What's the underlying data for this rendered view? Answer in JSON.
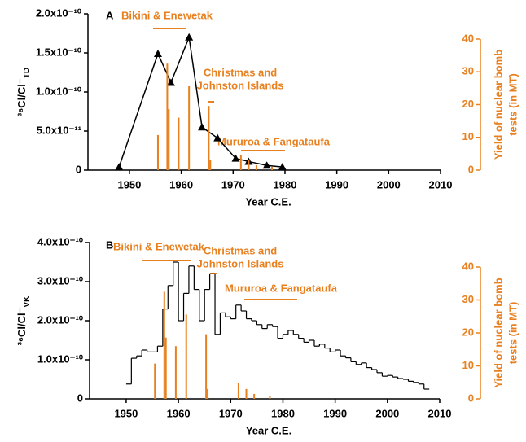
{
  "chart_data": [
    {
      "type": "line",
      "panel": "A",
      "ylabel": "³⁶Cl/Cl⁻",
      "ylabel_sub": "TD",
      "xlabel": "Year C.E.",
      "y2label": [
        "Yield of nuclear bomb",
        "tests (in MT)"
      ],
      "xlim": [
        1942,
        2010
      ],
      "xticks": [
        1950,
        1960,
        1970,
        1980,
        1990,
        2000,
        2010
      ],
      "ylim": [
        0,
        2e-10
      ],
      "yticks": [
        {
          "value": 0,
          "label": "0"
        },
        {
          "value": 5e-11,
          "label": "5.0x10⁻¹¹"
        },
        {
          "value": 1e-10,
          "label": "1.0x10⁻¹⁰"
        },
        {
          "value": 1.5e-10,
          "label": "1.5x10⁻¹⁰"
        },
        {
          "value": 2e-10,
          "label": "2.0x10⁻¹⁰"
        }
      ],
      "y2lim": [
        0,
        40
      ],
      "y2ticks": [
        0,
        10,
        20,
        30,
        40
      ],
      "series": [
        {
          "color": "#000000",
          "x": [
            1948,
            1955.5,
            1958,
            1961.5,
            1964,
            1967,
            1970.5,
            1973,
            1976.5,
            1979.5
          ],
          "values": [
            4e-12,
            1.49e-10,
            1.12e-10,
            1.7e-10,
            5.5e-11,
            4.1e-11,
            1.5e-11,
            1.1e-11,
            6e-12,
            4e-12
          ]
        },
        {
          "type": "bar",
          "axis": "y2",
          "color": "#e8801f",
          "x": [
            1955.5,
            1957.3,
            1957.6,
            1959.5,
            1961.5,
            1965.3,
            1965.6,
            1971.5,
            1973,
            1974.5,
            1977.5
          ],
          "values": [
            10.7,
            32.5,
            18.6,
            16,
            25.6,
            19.6,
            3,
            4.7,
            3,
            1.5,
            1
          ]
        }
      ],
      "annotations": [
        {
          "text": [
            "Bikini & Enewetak"
          ]
        },
        {
          "text": [
            "Christmas and",
            "Johnston Islands"
          ]
        },
        {
          "text": [
            "Mururoa & Fangataufa"
          ]
        }
      ]
    },
    {
      "type": "step",
      "panel": "B",
      "ylabel": "³⁶Cl/Cl⁻",
      "ylabel_sub": "VK",
      "xlabel": "Year C.E.",
      "y2label": [
        "Yield of nuclear bomb",
        "tests (in MT)"
      ],
      "xlim": [
        1943,
        2010
      ],
      "xticks": [
        1950,
        1960,
        1970,
        1980,
        1990,
        2000,
        2010
      ],
      "ylim": [
        0,
        4e-10
      ],
      "yticks": [
        {
          "value": 0,
          "label": "0"
        },
        {
          "value": 1e-10,
          "label": "1.0x10⁻¹⁰"
        },
        {
          "value": 2e-10,
          "label": "2.0x10⁻¹⁰"
        },
        {
          "value": 3e-10,
          "label": "3.0x10⁻¹⁰"
        },
        {
          "value": 4e-10,
          "label": "4.0x10⁻¹⁰"
        }
      ],
      "y2lim": [
        0,
        40
      ],
      "y2ticks": [
        0,
        10,
        20,
        30,
        40
      ],
      "series": [
        {
          "color": "#000000",
          "x": [
            1950,
            1951,
            1952,
            1953,
            1954,
            1955,
            1956,
            1957,
            1958,
            1959,
            1960,
            1961,
            1962,
            1963,
            1964,
            1965,
            1966,
            1967,
            1968,
            1969,
            1970,
            1971,
            1972,
            1973,
            1974,
            1975,
            1976,
            1977,
            1978,
            1979,
            1980,
            1981,
            1982,
            1983,
            1984,
            1985,
            1986,
            1987,
            1988,
            1989,
            1990,
            1991,
            1992,
            1993,
            1994,
            1995,
            1996,
            1997,
            1998,
            1999,
            2000,
            2001,
            2002,
            2003,
            2004,
            2005,
            2006,
            2007
          ],
          "values": [
            3.8e-11,
            1.04e-10,
            1.1e-10,
            1.25e-10,
            1.2e-10,
            1.2e-10,
            1.35e-10,
            2.3e-10,
            2.9e-10,
            3.5e-10,
            2e-10,
            2.7e-10,
            3.4e-10,
            2.8e-10,
            2e-10,
            2.8e-10,
            3.2e-10,
            1.65e-10,
            2.2e-10,
            2.1e-10,
            2.05e-10,
            2.4e-10,
            2.25e-10,
            2.05e-10,
            2e-10,
            1.9e-10,
            1.8e-10,
            1.9e-10,
            1.85e-10,
            1.55e-10,
            1.65e-10,
            1.75e-10,
            1.65e-10,
            1.55e-10,
            1.45e-10,
            1.5e-10,
            1.35e-10,
            1.4e-10,
            1.3e-10,
            1.2e-10,
            1.25e-10,
            1.1e-10,
            1.05e-10,
            9.5e-11,
            8.8e-11,
            9.2e-11,
            8e-11,
            7.5e-11,
            6.7e-11,
            5.8e-11,
            6e-11,
            5.6e-11,
            5.2e-11,
            5e-11,
            4.5e-11,
            4.2e-11,
            3.8e-11,
            2.5e-11
          ]
        },
        {
          "type": "bar",
          "axis": "y2",
          "color": "#e8801f",
          "x": [
            1955.5,
            1957.3,
            1957.6,
            1959.5,
            1961.5,
            1965.3,
            1965.6,
            1971.5,
            1973,
            1974.5,
            1977.5
          ],
          "values": [
            10.7,
            32.5,
            18.6,
            16,
            25.6,
            19.6,
            3,
            4.7,
            3,
            1.5,
            1
          ]
        }
      ],
      "annotations": [
        {
          "text": [
            "Bikini & Enewetak"
          ]
        },
        {
          "text": [
            "Christmas and",
            "Johnston Islands"
          ]
        },
        {
          "text": [
            "Mururoa & Fangataufa"
          ]
        }
      ]
    }
  ]
}
